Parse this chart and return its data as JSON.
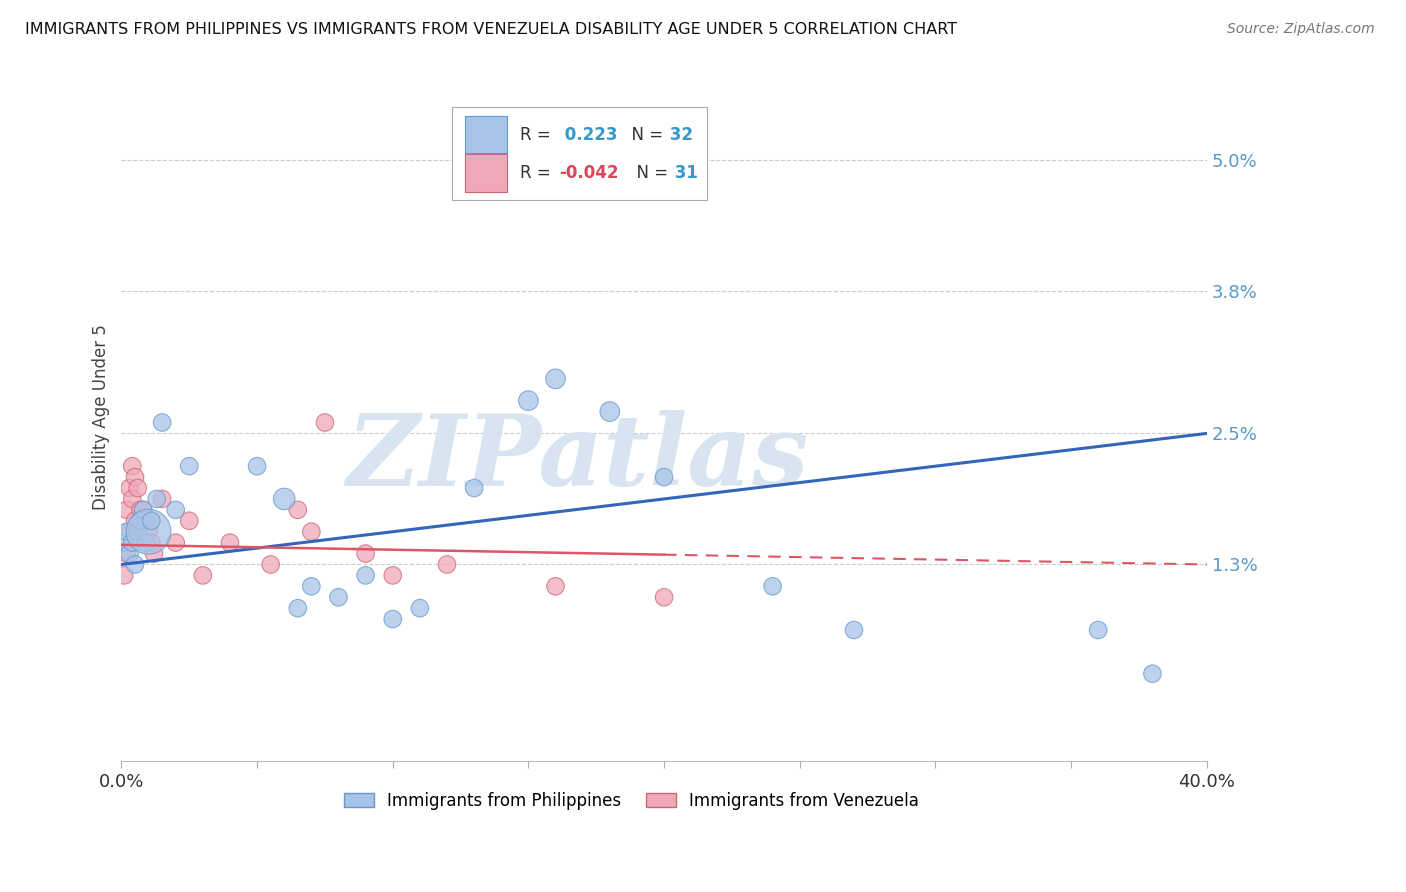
{
  "title": "IMMIGRANTS FROM PHILIPPINES VS IMMIGRANTS FROM VENEZUELA DISABILITY AGE UNDER 5 CORRELATION CHART",
  "source": "Source: ZipAtlas.com",
  "ylabel": "Disability Age Under 5",
  "ytick_values": [
    0.05,
    0.038,
    0.025,
    0.013
  ],
  "ytick_labels": [
    "5.0%",
    "3.8%",
    "2.5%",
    "1.3%"
  ],
  "xmin": 0.0,
  "xmax": 0.4,
  "ymin": -0.005,
  "ymax": 0.058,
  "philippines_color": "#a8c4e8",
  "philippines_edge": "#6699cc",
  "venezuela_color": "#f0a8b8",
  "venezuela_edge": "#cc6677",
  "regression_blue": "#3366bb",
  "regression_pink": "#dd5566",
  "watermark_color": "#d8e4f0",
  "background_color": "#ffffff",
  "grid_color": "#cccccc",
  "ytick_color": "#5599cc",
  "note_blue_R": "0.223",
  "note_blue_N": "32",
  "note_pink_R": "-0.042",
  "note_pink_N": "31",
  "philippines_x": [
    0.001,
    0.002,
    0.003,
    0.004,
    0.005,
    0.006,
    0.007,
    0.008,
    0.009,
    0.01,
    0.011,
    0.013,
    0.015,
    0.02,
    0.025,
    0.05,
    0.06,
    0.065,
    0.07,
    0.08,
    0.09,
    0.1,
    0.11,
    0.13,
    0.15,
    0.16,
    0.18,
    0.2,
    0.24,
    0.27,
    0.36,
    0.38
  ],
  "philippines_y": [
    0.015,
    0.016,
    0.014,
    0.015,
    0.013,
    0.016,
    0.017,
    0.018,
    0.015,
    0.016,
    0.017,
    0.019,
    0.026,
    0.018,
    0.022,
    0.022,
    0.019,
    0.009,
    0.011,
    0.01,
    0.012,
    0.008,
    0.009,
    0.02,
    0.028,
    0.03,
    0.027,
    0.021,
    0.011,
    0.007,
    0.007,
    0.003
  ],
  "philippines_size": [
    20,
    20,
    20,
    20,
    20,
    20,
    20,
    20,
    20,
    130,
    20,
    20,
    20,
    20,
    20,
    20,
    30,
    20,
    20,
    20,
    20,
    20,
    20,
    20,
    25,
    25,
    25,
    20,
    20,
    20,
    20,
    20
  ],
  "venezuela_x": [
    0.001,
    0.002,
    0.002,
    0.003,
    0.003,
    0.004,
    0.004,
    0.005,
    0.005,
    0.006,
    0.006,
    0.007,
    0.008,
    0.009,
    0.01,
    0.011,
    0.012,
    0.015,
    0.02,
    0.025,
    0.03,
    0.04,
    0.055,
    0.065,
    0.07,
    0.075,
    0.09,
    0.1,
    0.12,
    0.16,
    0.2
  ],
  "venezuela_y": [
    0.012,
    0.014,
    0.018,
    0.016,
    0.02,
    0.019,
    0.022,
    0.017,
    0.021,
    0.016,
    0.02,
    0.018,
    0.018,
    0.017,
    0.016,
    0.015,
    0.014,
    0.019,
    0.015,
    0.017,
    0.012,
    0.015,
    0.013,
    0.018,
    0.016,
    0.026,
    0.014,
    0.012,
    0.013,
    0.011,
    0.01
  ],
  "venezuela_size": [
    20,
    20,
    20,
    20,
    20,
    20,
    20,
    20,
    20,
    20,
    20,
    20,
    20,
    20,
    20,
    20,
    20,
    20,
    20,
    20,
    20,
    20,
    20,
    20,
    20,
    20,
    20,
    20,
    20,
    20,
    20
  ],
  "watermark": "ZIPatlas",
  "phil_legend": "Immigrants from Philippines",
  "ven_legend": "Immigrants from Venezuela"
}
